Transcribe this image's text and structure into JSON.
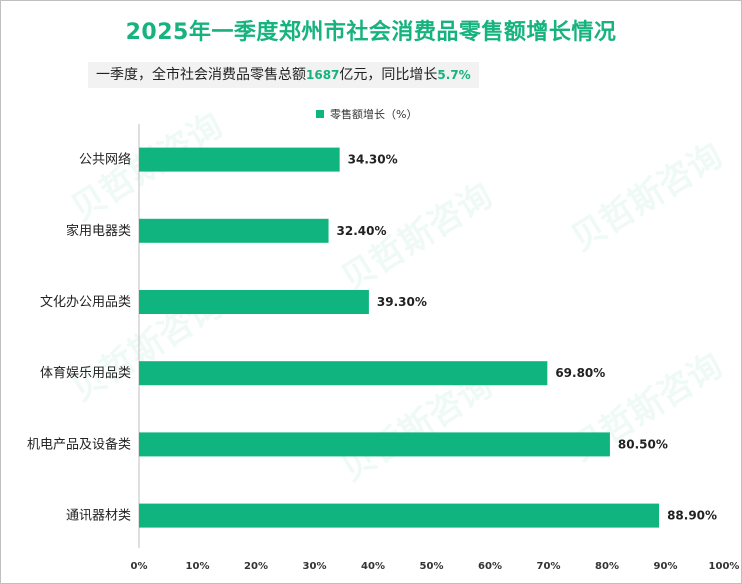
{
  "header": {
    "title": "2025年一季度郑州市社会消费品零售额增长情况",
    "subtitle_prefix": "一季度，全市社会消费品零售总额",
    "subtitle_amount": "1687",
    "subtitle_mid": "亿元，同比增长",
    "subtitle_rate": "5.7%"
  },
  "watermark": {
    "text": "贝哲斯咨询"
  },
  "chart_data": {
    "type": "bar",
    "orientation": "horizontal",
    "categories": [
      "公共网络",
      "家用电器类",
      "文化办公用品类",
      "体育娱乐用品类",
      "机电产品及设备类",
      "通讯器材类"
    ],
    "series": [
      {
        "name": "零售额增长（%）",
        "values": [
          34.3,
          32.4,
          39.3,
          69.8,
          80.5,
          88.9
        ],
        "color": "#0fb47f"
      }
    ],
    "value_labels": [
      "34.30%",
      "32.40%",
      "39.30%",
      "69.80%",
      "80.50%",
      "88.90%"
    ],
    "xlim": [
      0,
      100
    ],
    "ticks": [
      "0%",
      "10%",
      "20%",
      "30%",
      "40%",
      "50%",
      "60%",
      "70%",
      "80%",
      "90%",
      "100%"
    ],
    "grid": false,
    "legend_position": "top-center"
  }
}
